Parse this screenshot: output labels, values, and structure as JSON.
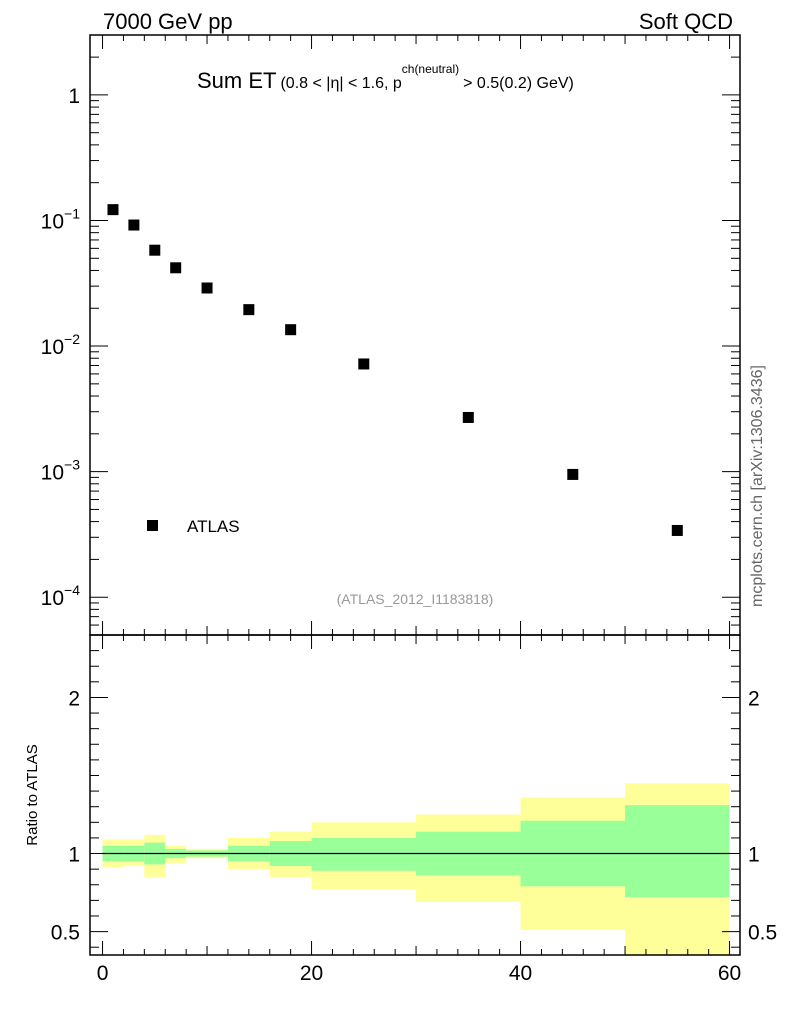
{
  "header": {
    "left": "7000 GeV pp",
    "right": "Soft QCD"
  },
  "title": {
    "main": "Sum ET",
    "cut_open": "(0.8 < |",
    "eta": "η",
    "cut_mid": "| < 1.6, p",
    "sup": "ch(neutral)",
    "cut_end": "> 0.5(0.2) GeV)"
  },
  "ref_label": "(ATLAS_2012_I1183818)",
  "side_label": "mcplots.cern.ch [arXiv:1306.3436]",
  "colors": {
    "data_marker": "#000000",
    "band_inner": "#99ff99",
    "band_outer": "#ffff99",
    "ref_text": "#999999",
    "side_text": "#666666"
  },
  "chart_data": [
    {
      "type": "scatter",
      "name": "main",
      "y_scale": "log",
      "xlim": [
        -1.2,
        61
      ],
      "ylim": [
        5e-05,
        3
      ],
      "y_tick_labels": [
        {
          "value": 1,
          "base": "1",
          "exp": ""
        },
        {
          "value": 0.1,
          "base": "10",
          "exp": "−1"
        },
        {
          "value": 0.01,
          "base": "10",
          "exp": "−2"
        },
        {
          "value": 0.001,
          "base": "10",
          "exp": "−3"
        },
        {
          "value": 0.0001,
          "base": "10",
          "exp": "−4"
        }
      ],
      "legend": {
        "label": "ATLAS",
        "position": "bottom-left"
      },
      "series": [
        {
          "name": "ATLAS",
          "x": [
            1,
            3,
            5,
            7,
            10,
            14,
            18,
            25,
            35,
            45,
            55
          ],
          "y": [
            0.122,
            0.092,
            0.058,
            0.042,
            0.029,
            0.0195,
            0.0135,
            0.0072,
            0.0027,
            0.00095,
            0.00034
          ]
        }
      ]
    },
    {
      "type": "area",
      "name": "ratio",
      "ylabel": "Ratio to ATLAS",
      "xlim": [
        -1.2,
        61
      ],
      "ylim": [
        0.35,
        2.4
      ],
      "x_ticks": [
        0,
        20,
        40,
        60
      ],
      "y_ticks": [
        0.5,
        1,
        2
      ],
      "reference_line": 1,
      "bins": [
        {
          "x0": 0,
          "x1": 2,
          "outer": [
            0.91,
            1.09
          ],
          "inner": [
            0.95,
            1.05
          ]
        },
        {
          "x0": 2,
          "x1": 4,
          "outer": [
            0.92,
            1.09
          ],
          "inner": [
            0.95,
            1.05
          ]
        },
        {
          "x0": 4,
          "x1": 6,
          "outer": [
            0.85,
            1.12
          ],
          "inner": [
            0.93,
            1.07
          ]
        },
        {
          "x0": 6,
          "x1": 8,
          "outer": [
            0.94,
            1.05
          ],
          "inner": [
            0.97,
            1.03
          ]
        },
        {
          "x0": 8,
          "x1": 12,
          "outer": [
            0.97,
            1.03
          ],
          "inner": [
            0.98,
            1.02
          ]
        },
        {
          "x0": 12,
          "x1": 16,
          "outer": [
            0.9,
            1.1
          ],
          "inner": [
            0.95,
            1.05
          ]
        },
        {
          "x0": 16,
          "x1": 20,
          "outer": [
            0.85,
            1.14
          ],
          "inner": [
            0.92,
            1.08
          ]
        },
        {
          "x0": 20,
          "x1": 30,
          "outer": [
            0.77,
            1.2
          ],
          "inner": [
            0.89,
            1.1
          ]
        },
        {
          "x0": 30,
          "x1": 40,
          "outer": [
            0.69,
            1.25
          ],
          "inner": [
            0.86,
            1.14
          ]
        },
        {
          "x0": 40,
          "x1": 50,
          "outer": [
            0.51,
            1.36
          ],
          "inner": [
            0.79,
            1.21
          ]
        },
        {
          "x0": 50,
          "x1": 60,
          "outer": [
            0.3,
            1.45
          ],
          "inner": [
            0.72,
            1.31
          ]
        }
      ]
    }
  ]
}
